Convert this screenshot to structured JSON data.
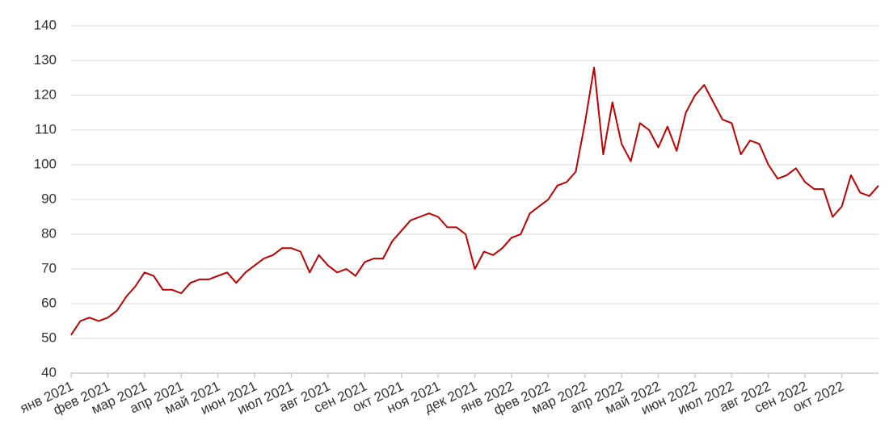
{
  "chart_data": {
    "type": "line",
    "x": [
      0,
      0.25,
      0.5,
      0.75,
      1,
      1.25,
      1.5,
      1.75,
      2,
      2.25,
      2.5,
      2.75,
      3,
      3.25,
      3.5,
      3.75,
      4,
      4.25,
      4.5,
      4.75,
      5,
      5.25,
      5.5,
      5.75,
      6,
      6.25,
      6.5,
      6.75,
      7,
      7.25,
      7.5,
      7.75,
      8,
      8.25,
      8.5,
      8.75,
      9,
      9.25,
      9.5,
      9.75,
      10,
      10.25,
      10.5,
      10.75,
      11,
      11.25,
      11.5,
      11.75,
      12,
      12.25,
      12.5,
      12.75,
      13,
      13.25,
      13.5,
      13.75,
      14,
      14.25,
      14.5,
      14.75,
      15,
      15.25,
      15.5,
      15.75,
      16,
      16.25,
      16.5,
      16.75,
      17,
      17.25,
      17.5,
      17.75,
      18,
      18.25,
      18.5,
      18.75,
      19,
      19.25,
      19.5,
      19.75,
      20,
      20.25,
      20.5,
      20.75,
      21,
      21.25,
      21.5,
      21.75,
      22
    ],
    "series": [
      {
        "color": "#c00000",
        "values": [
          51,
          55,
          56,
          55,
          56,
          58,
          62,
          65,
          69,
          68,
          64,
          64,
          63,
          66,
          67,
          67,
          68,
          69,
          66,
          69,
          71,
          73,
          74,
          76,
          76,
          75,
          69,
          74,
          71,
          69,
          70,
          68,
          72,
          73,
          73,
          78,
          81,
          84,
          85,
          86,
          85,
          82,
          82,
          80,
          70,
          75,
          74,
          76,
          79,
          80,
          86,
          88,
          90,
          94,
          95,
          98,
          112,
          128,
          103,
          118,
          106,
          101,
          112,
          110,
          105,
          111,
          104,
          115,
          120,
          123,
          118,
          113,
          112,
          103,
          107,
          106,
          100,
          96,
          97,
          99,
          95,
          93,
          93,
          85,
          88,
          97,
          92,
          91,
          94
        ]
      }
    ],
    "xlim": [
      0,
      22
    ],
    "xticks": [
      {
        "value": 0,
        "label": "янв 2021"
      },
      {
        "value": 1,
        "label": "фев 2021"
      },
      {
        "value": 2,
        "label": "мар 2021"
      },
      {
        "value": 3,
        "label": "апр 2021"
      },
      {
        "value": 4,
        "label": "май 2021"
      },
      {
        "value": 5,
        "label": "июн 2021"
      },
      {
        "value": 6,
        "label": "июл 2021"
      },
      {
        "value": 7,
        "label": "авг 2021"
      },
      {
        "value": 8,
        "label": "сен 2021"
      },
      {
        "value": 9,
        "label": "окт 2021"
      },
      {
        "value": 10,
        "label": "ноя 2021"
      },
      {
        "value": 11,
        "label": "дек 2021"
      },
      {
        "value": 12,
        "label": "янв 2022"
      },
      {
        "value": 13,
        "label": "фев 2022"
      },
      {
        "value": 14,
        "label": "мар 2022"
      },
      {
        "value": 15,
        "label": "апр 2022"
      },
      {
        "value": 16,
        "label": "май 2022"
      },
      {
        "value": 17,
        "label": "июн 2022"
      },
      {
        "value": 18,
        "label": "июл 2022"
      },
      {
        "value": 19,
        "label": "авг 2022"
      },
      {
        "value": 20,
        "label": "сен 2022"
      },
      {
        "value": 21,
        "label": "окт 2022"
      }
    ],
    "ylim": [
      40,
      140
    ],
    "yticks": [
      40,
      50,
      60,
      70,
      80,
      90,
      100,
      110,
      120,
      130,
      140
    ],
    "grid": true
  }
}
